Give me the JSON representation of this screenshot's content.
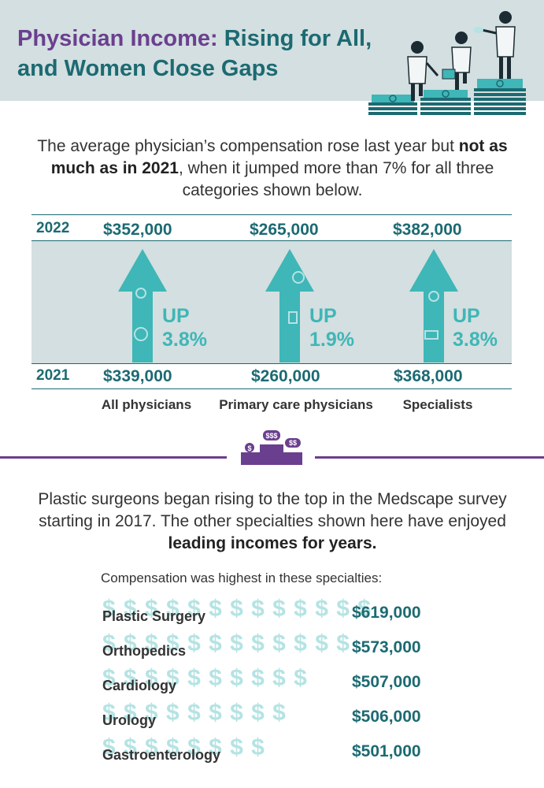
{
  "header": {
    "title_line1_a": "Physician Income:",
    "title_line1_b": " Rising for All,",
    "title_line2": "and Women Close Gaps"
  },
  "intro": {
    "part1": "The average physician’s compensation rose last year but ",
    "bold": "not as much as in 2021",
    "part2": ", when it jumped more than 7% for all three categories shown below."
  },
  "comparison": {
    "year_top": "2022",
    "year_bottom": "2021",
    "up_label": "UP",
    "columns": [
      {
        "category": "All physicians",
        "value_2022": "$352,000",
        "value_2021": "$339,000",
        "change": "3.8%"
      },
      {
        "category": "Primary care physicians",
        "value_2022": "$265,000",
        "value_2021": "$260,000",
        "change": "1.9%"
      },
      {
        "category": "Specialists",
        "value_2022": "$382,000",
        "value_2021": "$368,000",
        "change": "3.8%"
      }
    ]
  },
  "section2": {
    "part1": "Plastic surgeons began rising to the top in the Medscape survey starting in 2017. The other specialties shown here have enjoyed ",
    "bold": "leading incomes for years.",
    "subtitle": "Compensation was highest in these specialties:"
  },
  "chart_data": {
    "type": "bar",
    "title": "Compensation was highest in these specialties:",
    "categories": [
      "Plastic Surgery",
      "Orthopedics",
      "Cardiology",
      "Urology",
      "Gastroenterology"
    ],
    "values": [
      619000,
      573000,
      507000,
      506000,
      501000
    ],
    "value_labels": [
      "$619,000",
      "$573,000",
      "$507,000",
      "$506,000",
      "$501,000"
    ],
    "dollar_counts": [
      13,
      12,
      10,
      9,
      8
    ]
  },
  "colors": {
    "teal": "#1c6a72",
    "light_teal": "#3fb6b7",
    "purple": "#6b3f8f",
    "band": "#d3dfe0"
  }
}
